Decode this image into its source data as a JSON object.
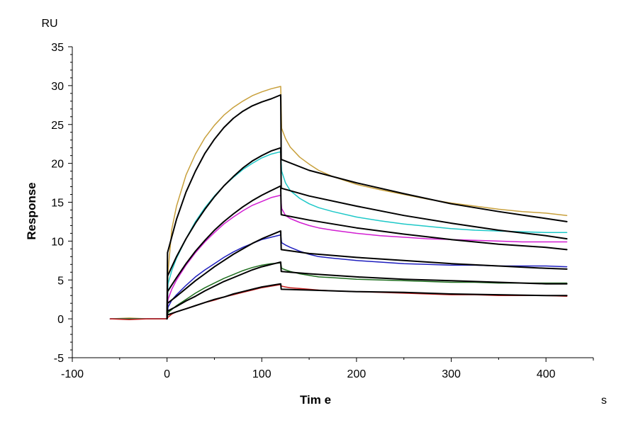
{
  "chart_data": {
    "type": "line",
    "title": "",
    "xlabel": "Tim e",
    "ylabel": "Response",
    "x_unit": "s",
    "y_unit": "RU",
    "xlim": [
      -100,
      450
    ],
    "ylim": [
      -5,
      35
    ],
    "x_ticks": [
      -100,
      0,
      100,
      200,
      300,
      400
    ],
    "y_ticks": [
      -5,
      0,
      5,
      10,
      15,
      20,
      25,
      30,
      35
    ],
    "x_tick_labels": [
      "-100",
      "0",
      "100",
      "200",
      "300",
      "400"
    ],
    "y_tick_labels": [
      "-5",
      "0",
      "5",
      "10",
      "15",
      "20",
      "25",
      "30",
      "35"
    ],
    "grid": false,
    "legend": "none",
    "series": [
      {
        "color": "#c8a03c",
        "kind": "measured",
        "x": [
          -60,
          -40,
          -20,
          0,
          1,
          5,
          10,
          20,
          30,
          40,
          50,
          60,
          70,
          80,
          90,
          100,
          110,
          120,
          121,
          125,
          130,
          140,
          150,
          160,
          175,
          200,
          225,
          250,
          275,
          300,
          325,
          350,
          375,
          400,
          422
        ],
        "y": [
          0.0,
          0.1,
          0.0,
          0.0,
          6.0,
          11.5,
          14.5,
          18.5,
          21.2,
          23.3,
          24.9,
          26.2,
          27.2,
          28.0,
          28.7,
          29.2,
          29.6,
          29.9,
          24.5,
          23.2,
          22.1,
          20.8,
          19.9,
          19.1,
          18.3,
          17.3,
          16.6,
          16.0,
          15.4,
          14.9,
          14.5,
          14.1,
          13.8,
          13.6,
          13.3
        ]
      },
      {
        "color": "#1ec8c8",
        "kind": "measured",
        "x": [
          -60,
          -20,
          0,
          1,
          5,
          10,
          20,
          30,
          40,
          50,
          60,
          70,
          80,
          90,
          100,
          110,
          120,
          121,
          125,
          130,
          140,
          150,
          160,
          175,
          200,
          225,
          250,
          275,
          300,
          325,
          350,
          375,
          400,
          422
        ],
        "y": [
          0.0,
          0.0,
          0.0,
          4.5,
          6.2,
          7.8,
          10.3,
          12.5,
          14.3,
          15.8,
          17.1,
          18.2,
          19.2,
          20.0,
          20.7,
          21.2,
          21.5,
          19.0,
          17.5,
          16.5,
          15.5,
          14.8,
          14.3,
          13.8,
          13.1,
          12.6,
          12.2,
          11.9,
          11.6,
          11.4,
          11.3,
          11.2,
          11.1,
          11.1
        ]
      },
      {
        "color": "#d21ed2",
        "kind": "measured",
        "x": [
          -60,
          -20,
          0,
          1,
          5,
          10,
          20,
          30,
          40,
          50,
          60,
          70,
          80,
          90,
          100,
          110,
          120,
          121,
          125,
          130,
          140,
          150,
          160,
          175,
          200,
          225,
          250,
          275,
          300,
          325,
          350,
          375,
          400,
          422
        ],
        "y": [
          0.0,
          0.0,
          0.0,
          2.5,
          3.8,
          5.0,
          6.9,
          8.5,
          9.9,
          11.1,
          12.2,
          13.1,
          13.9,
          14.6,
          15.1,
          15.6,
          15.9,
          14.2,
          13.3,
          12.9,
          12.4,
          12.0,
          11.7,
          11.4,
          11.0,
          10.7,
          10.5,
          10.3,
          10.2,
          10.1,
          10.0,
          9.9,
          9.9,
          9.9
        ]
      },
      {
        "color": "#1e1ebe",
        "kind": "measured",
        "x": [
          -60,
          -20,
          0,
          1,
          5,
          10,
          20,
          30,
          40,
          50,
          60,
          70,
          80,
          90,
          100,
          110,
          120,
          121,
          125,
          130,
          140,
          150,
          160,
          175,
          200,
          225,
          250,
          275,
          300,
          325,
          350,
          375,
          400,
          422
        ],
        "y": [
          0.0,
          0.0,
          0.0,
          1.5,
          2.4,
          3.1,
          4.3,
          5.4,
          6.3,
          7.1,
          7.9,
          8.6,
          9.2,
          9.7,
          10.2,
          10.5,
          10.8,
          9.8,
          9.5,
          9.2,
          8.7,
          8.3,
          8.0,
          7.8,
          7.5,
          7.3,
          7.1,
          7.0,
          6.9,
          6.9,
          6.8,
          6.8,
          6.8,
          6.7
        ]
      },
      {
        "color": "#1e6e1e",
        "kind": "measured",
        "x": [
          -60,
          -20,
          0,
          1,
          5,
          10,
          20,
          30,
          40,
          50,
          60,
          70,
          80,
          90,
          100,
          110,
          120,
          121,
          125,
          130,
          140,
          150,
          160,
          175,
          200,
          225,
          250,
          275,
          300,
          325,
          350,
          375,
          400,
          422
        ],
        "y": [
          0.0,
          0.0,
          0.0,
          0.8,
          1.2,
          1.7,
          2.5,
          3.3,
          4.0,
          4.6,
          5.2,
          5.7,
          6.2,
          6.6,
          6.9,
          7.1,
          7.2,
          6.5,
          6.3,
          6.1,
          5.8,
          5.6,
          5.4,
          5.3,
          5.1,
          5.0,
          4.9,
          4.8,
          4.7,
          4.7,
          4.6,
          4.6,
          4.6,
          4.6
        ]
      },
      {
        "color": "#c81e1e",
        "kind": "measured",
        "x": [
          -60,
          -40,
          -20,
          0,
          1,
          5,
          10,
          20,
          30,
          40,
          50,
          60,
          70,
          80,
          90,
          100,
          110,
          120,
          121,
          125,
          130,
          140,
          150,
          160,
          175,
          200,
          225,
          250,
          275,
          300,
          325,
          350,
          375,
          400,
          422
        ],
        "y": [
          0.0,
          -0.1,
          0.0,
          0.0,
          0.2,
          0.6,
          0.9,
          1.3,
          1.7,
          2.1,
          2.4,
          2.8,
          3.1,
          3.4,
          3.7,
          4.0,
          4.2,
          4.4,
          4.2,
          4.1,
          4.0,
          3.9,
          3.8,
          3.7,
          3.6,
          3.5,
          3.4,
          3.3,
          3.2,
          3.1,
          3.1,
          3.0,
          3.0,
          3.0,
          2.9
        ]
      },
      {
        "color": "#000000",
        "kind": "fit",
        "x": [
          0,
          0.5,
          10,
          20,
          30,
          40,
          50,
          60,
          70,
          80,
          90,
          100,
          110,
          120,
          120.5,
          150,
          200,
          250,
          300,
          350,
          400,
          422
        ],
        "y": [
          0.0,
          8.5,
          12.8,
          16.3,
          19.0,
          21.3,
          23.1,
          24.6,
          25.8,
          26.7,
          27.4,
          27.9,
          28.3,
          28.8,
          20.5,
          19.1,
          17.5,
          16.1,
          14.8,
          13.8,
          12.9,
          12.5
        ]
      },
      {
        "color": "#000000",
        "kind": "fit",
        "x": [
          0,
          0.5,
          10,
          20,
          30,
          40,
          50,
          60,
          70,
          80,
          90,
          100,
          110,
          120,
          120.5,
          150,
          200,
          250,
          300,
          350,
          400,
          422
        ],
        "y": [
          0.0,
          5.5,
          8.0,
          10.3,
          12.3,
          14.1,
          15.7,
          17.1,
          18.3,
          19.4,
          20.3,
          21.0,
          21.6,
          22.0,
          16.8,
          15.8,
          14.5,
          13.3,
          12.3,
          11.4,
          10.7,
          10.3
        ]
      },
      {
        "color": "#000000",
        "kind": "fit",
        "x": [
          0,
          0.5,
          10,
          20,
          30,
          40,
          50,
          60,
          70,
          80,
          90,
          100,
          110,
          120,
          120.5,
          150,
          200,
          250,
          300,
          350,
          400,
          422
        ],
        "y": [
          0.0,
          3.5,
          5.3,
          7.1,
          8.7,
          10.1,
          11.4,
          12.5,
          13.5,
          14.4,
          15.2,
          15.9,
          16.5,
          17.1,
          13.4,
          12.7,
          11.7,
          10.9,
          10.2,
          9.6,
          9.2,
          8.9
        ]
      },
      {
        "color": "#000000",
        "kind": "fit",
        "x": [
          0,
          0.5,
          10,
          20,
          30,
          40,
          50,
          60,
          70,
          80,
          90,
          100,
          110,
          120,
          120.5,
          150,
          200,
          250,
          300,
          350,
          400,
          422
        ],
        "y": [
          0.0,
          2.0,
          2.9,
          3.9,
          4.9,
          5.8,
          6.7,
          7.5,
          8.3,
          9.0,
          9.7,
          10.3,
          10.8,
          11.3,
          8.9,
          8.4,
          7.9,
          7.5,
          7.1,
          6.8,
          6.5,
          6.4
        ]
      },
      {
        "color": "#000000",
        "kind": "fit",
        "x": [
          0,
          0.5,
          10,
          20,
          30,
          40,
          50,
          60,
          70,
          80,
          90,
          100,
          110,
          120,
          120.5,
          150,
          200,
          250,
          300,
          350,
          400,
          422
        ],
        "y": [
          0.0,
          1.0,
          1.6,
          2.3,
          2.9,
          3.6,
          4.2,
          4.8,
          5.3,
          5.8,
          6.3,
          6.7,
          7.0,
          7.3,
          6.1,
          5.8,
          5.4,
          5.1,
          4.9,
          4.7,
          4.5,
          4.5
        ]
      },
      {
        "color": "#000000",
        "kind": "fit",
        "x": [
          0,
          0.5,
          10,
          20,
          30,
          40,
          50,
          60,
          70,
          80,
          90,
          100,
          110,
          120,
          120.5,
          150,
          200,
          250,
          300,
          350,
          400,
          422
        ],
        "y": [
          0.0,
          0.5,
          0.9,
          1.3,
          1.7,
          2.1,
          2.5,
          2.8,
          3.2,
          3.5,
          3.8,
          4.1,
          4.3,
          4.5,
          3.8,
          3.7,
          3.5,
          3.4,
          3.2,
          3.1,
          3.0,
          3.0
        ]
      }
    ]
  }
}
